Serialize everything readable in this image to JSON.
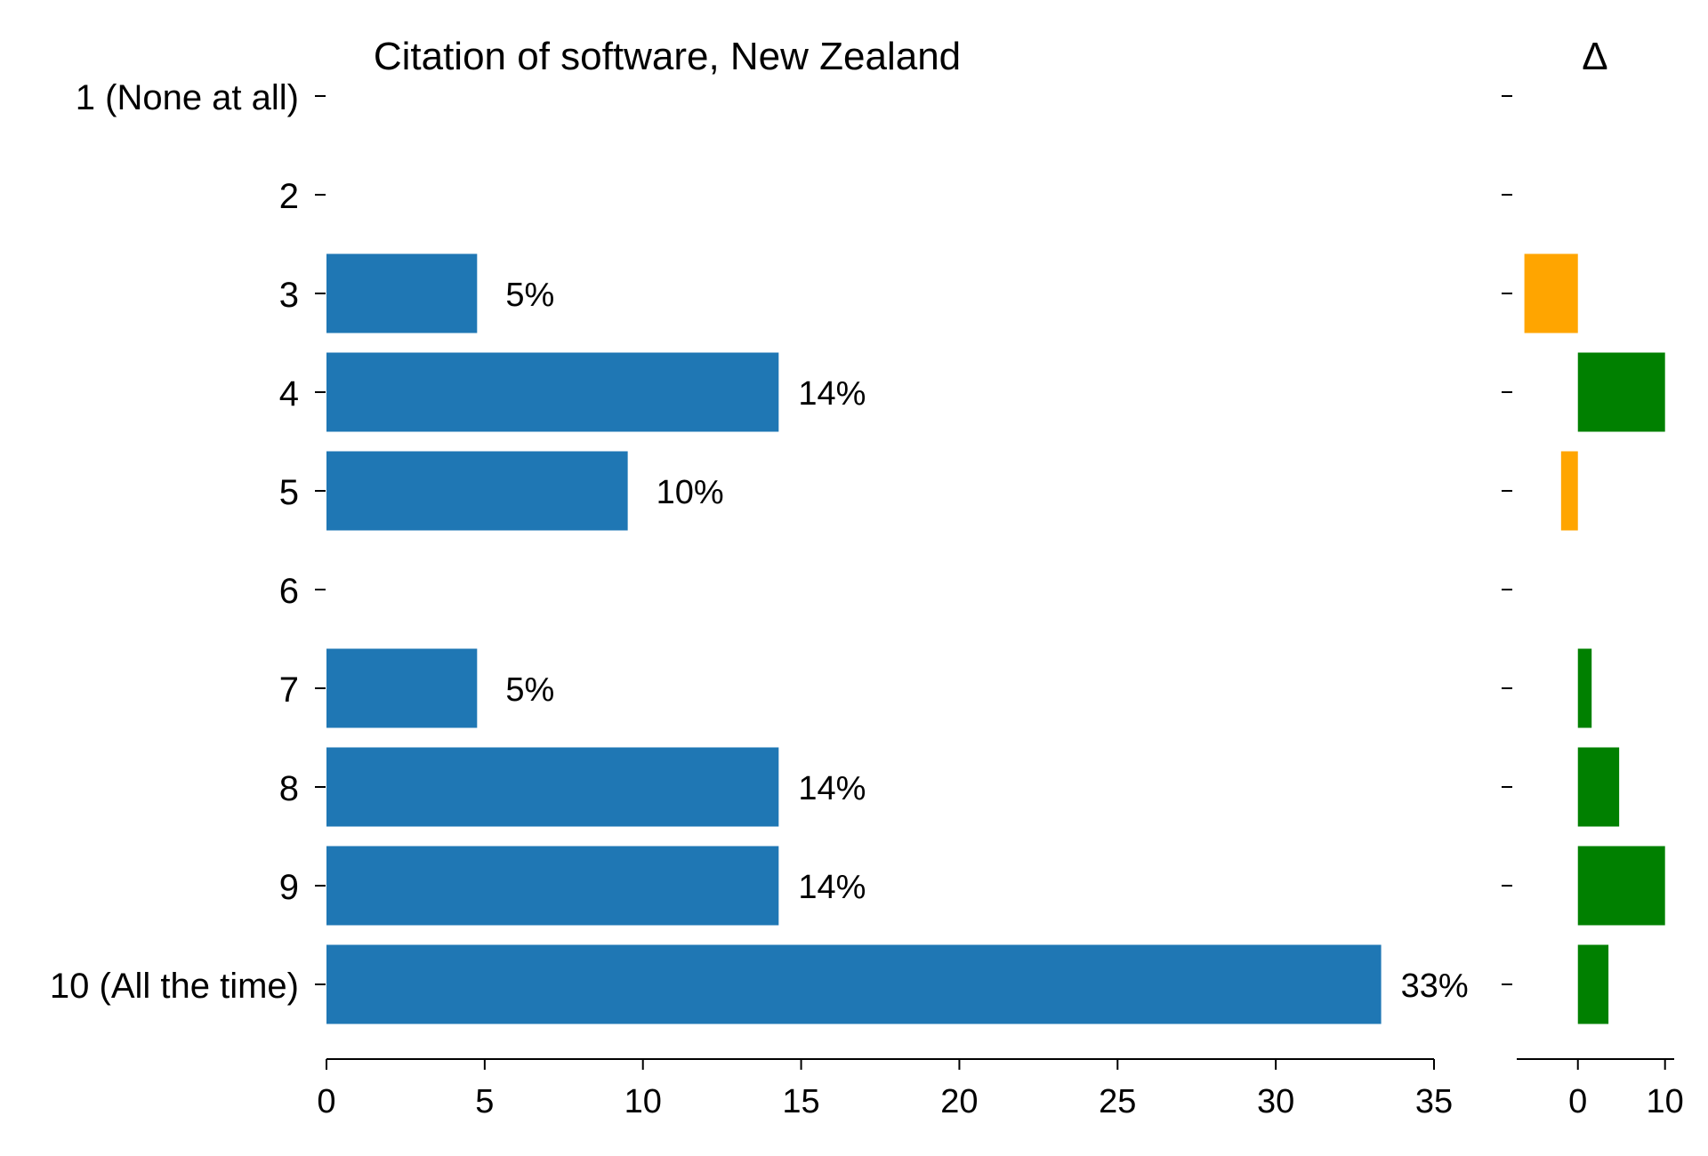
{
  "chart_data": [
    {
      "type": "bar",
      "orientation": "horizontal",
      "title": "Citation of software, New Zealand",
      "categories": [
        "1 (None at all)",
        "2",
        "3",
        "4",
        "5",
        "6",
        "7",
        "8",
        "9",
        "10 (All the time)"
      ],
      "values": [
        0,
        0,
        4.76,
        14.29,
        9.52,
        0,
        4.76,
        14.29,
        14.29,
        33.33
      ],
      "data_labels": [
        "",
        "",
        "5%",
        "14%",
        "10%",
        "",
        "5%",
        "14%",
        "14%",
        "33%"
      ],
      "xlim": [
        0,
        35
      ],
      "xticks": [
        "0",
        "5",
        "10",
        "15",
        "20",
        "25",
        "30",
        "35"
      ],
      "bar_color": "#1f77b4",
      "grid": false
    },
    {
      "type": "bar",
      "orientation": "horizontal",
      "title": "Δ",
      "categories": [
        "1 (None at all)",
        "2",
        "3",
        "4",
        "5",
        "6",
        "7",
        "8",
        "9",
        "10 (All the time)"
      ],
      "values": [
        0,
        0,
        -3.5,
        5.7,
        -1.1,
        0,
        0.9,
        2.7,
        5.7,
        2.0
      ],
      "xlim": [
        -4,
        6.3
      ],
      "xticks": [
        "0",
        "10"
      ],
      "positive_color": "#008000",
      "negative_color": "#ffa500",
      "grid": false
    }
  ]
}
